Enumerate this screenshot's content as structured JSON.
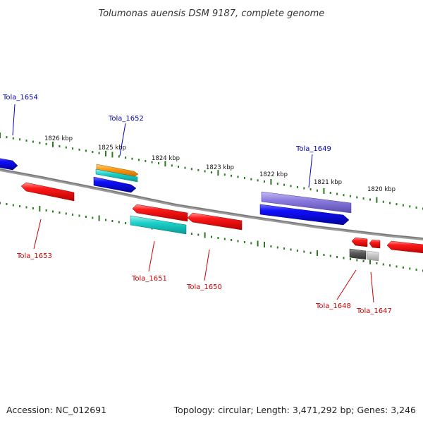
{
  "title": "Tolumonas auensis DSM 9187, complete genome",
  "footer": {
    "accession": "Accession: NC_012691",
    "summary": "Topology: circular; Length: 3,471,292 bp; Genes: 3,246"
  },
  "ruler_labels": [
    "1826 kbp",
    "1825 kbp",
    "1824 kbp",
    "1823 kbp",
    "1822 kbp",
    "1821 kbp",
    "1820 kbp"
  ],
  "gene_labels": {
    "tola_1654": "Tola_1654",
    "tola_1653": "Tola_1653",
    "tola_1652": "Tola_1652",
    "tola_1651": "Tola_1651",
    "tola_1650": "Tola_1650",
    "tola_1649": "Tola_1649",
    "tola_1648": "Tola_1648",
    "tola_1647": "Tola_1647"
  },
  "colors": {
    "forward_label": "#0000c0",
    "reverse_label": "#cc0000",
    "backbone": "#888888",
    "tick": "#2a7a1e"
  }
}
